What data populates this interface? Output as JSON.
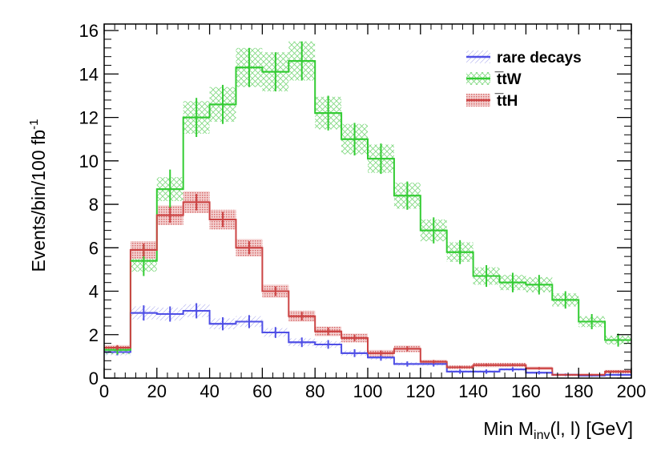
{
  "chart_data": {
    "type": "histogram",
    "title": "",
    "xlabel": {
      "main": "Min M",
      "sub": "inv",
      "rest": "(l, l) [GeV]"
    },
    "ylabel": {
      "main": "Events/bin/100 fb",
      "sup": "-1"
    },
    "xlim": [
      0,
      200
    ],
    "ylim": [
      0,
      16.3
    ],
    "xticks": [
      0,
      20,
      40,
      60,
      80,
      100,
      120,
      140,
      160,
      180,
      200
    ],
    "yticks": [
      0,
      2,
      4,
      6,
      8,
      10,
      12,
      14,
      16
    ],
    "bin_edges": [
      0,
      10,
      20,
      30,
      40,
      50,
      60,
      70,
      80,
      90,
      100,
      110,
      120,
      130,
      140,
      150,
      160,
      170,
      180,
      190,
      200
    ],
    "legend_position": "top-right",
    "series": [
      {
        "name": "rare decays",
        "color": "#4f4fe6",
        "band_style": "light-hatch",
        "values": [
          1.2,
          3.0,
          2.95,
          3.1,
          2.5,
          2.6,
          2.1,
          1.65,
          1.55,
          1.15,
          0.95,
          0.65,
          0.65,
          0.3,
          0.3,
          0.4,
          0.25,
          0.15,
          0.12,
          0.15
        ],
        "stat_err": [
          0.15,
          0.35,
          0.35,
          0.35,
          0.3,
          0.3,
          0.25,
          0.22,
          0.2,
          0.18,
          0.15,
          0.12,
          0.12,
          0.1,
          0.1,
          0.1,
          0.08,
          0.06,
          0.05,
          0.05
        ],
        "syst_err": [
          0.15,
          0.3,
          0.3,
          0.3,
          0.25,
          0.25,
          0.2,
          0.18,
          0.15,
          0.12,
          0.1,
          0.08,
          0.08,
          0.06,
          0.06,
          0.06,
          0.05,
          0.04,
          0.04,
          0.04
        ]
      },
      {
        "name": "t̅tW",
        "color": "#33cc33",
        "band_style": "cross-hatch",
        "values": [
          1.3,
          5.4,
          8.7,
          12.0,
          12.6,
          14.3,
          14.1,
          14.6,
          12.2,
          11.0,
          10.1,
          8.4,
          6.8,
          5.8,
          4.7,
          4.4,
          4.3,
          3.6,
          2.6,
          1.75
        ],
        "stat_err": [
          0.2,
          0.7,
          0.9,
          0.9,
          0.9,
          0.9,
          0.9,
          0.9,
          0.8,
          0.75,
          0.7,
          0.65,
          0.6,
          0.55,
          0.5,
          0.45,
          0.45,
          0.4,
          0.35,
          0.3
        ],
        "syst_err": [
          0.2,
          0.5,
          0.55,
          0.75,
          0.8,
          0.9,
          0.9,
          0.9,
          0.75,
          0.7,
          0.65,
          0.6,
          0.5,
          0.45,
          0.4,
          0.35,
          0.35,
          0.3,
          0.25,
          0.2
        ]
      },
      {
        "name": "t̅tH",
        "color": "#cc4444",
        "band_style": "dot-fill",
        "values": [
          1.4,
          5.9,
          7.5,
          8.1,
          7.3,
          6.0,
          4.0,
          2.85,
          2.15,
          1.85,
          1.15,
          1.35,
          0.75,
          0.5,
          0.6,
          0.6,
          0.45,
          0.15,
          0.15,
          0.3
        ],
        "stat_err": [
          0.12,
          0.3,
          0.35,
          0.38,
          0.35,
          0.3,
          0.22,
          0.2,
          0.18,
          0.15,
          0.12,
          0.12,
          0.08,
          0.06,
          0.06,
          0.06,
          0.06,
          0.04,
          0.04,
          0.05
        ],
        "syst_err": [
          0.12,
          0.4,
          0.45,
          0.5,
          0.45,
          0.4,
          0.3,
          0.25,
          0.22,
          0.2,
          0.15,
          0.15,
          0.1,
          0.08,
          0.1,
          0.1,
          0.08,
          0.05,
          0.05,
          0.08
        ]
      }
    ]
  }
}
